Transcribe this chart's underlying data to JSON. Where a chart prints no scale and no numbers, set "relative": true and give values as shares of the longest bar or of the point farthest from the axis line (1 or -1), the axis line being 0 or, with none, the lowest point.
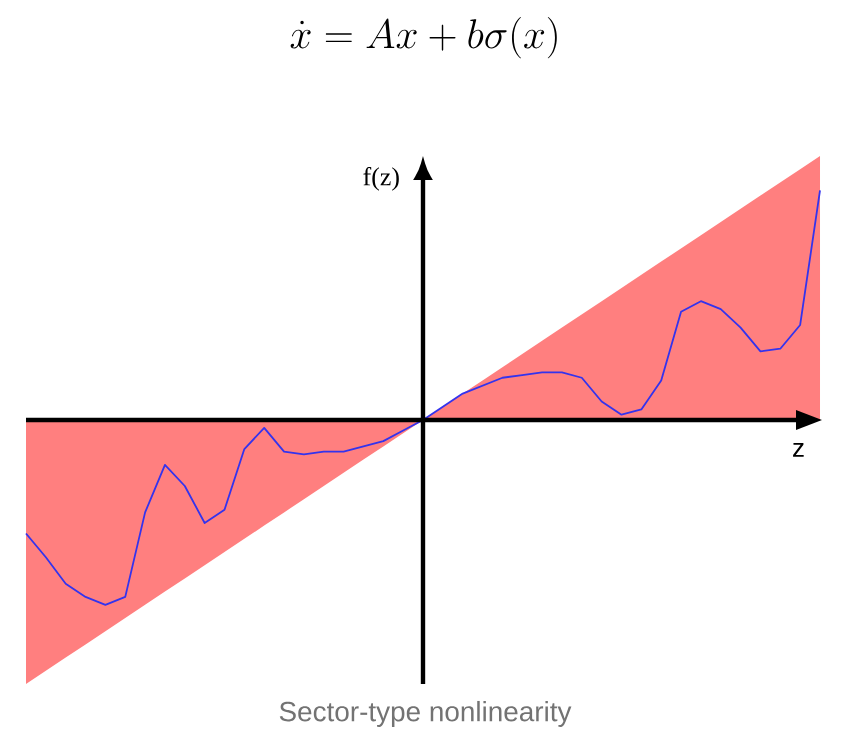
{
  "chart_data": {
    "type": "line",
    "title": "\\dot{x} = Ax + b\\sigma(x)",
    "xlabel": "z",
    "ylabel": "f(z)",
    "relative": true,
    "categories": [
      null,
      null,
      null,
      null,
      null,
      null,
      null,
      null,
      null,
      null,
      null,
      null,
      null,
      null,
      null,
      null,
      null,
      null,
      null,
      null,
      null,
      null,
      null,
      null,
      null,
      null,
      null,
      null,
      null,
      null,
      null,
      null,
      null,
      null,
      null,
      null,
      null,
      null,
      null,
      null,
      null
    ],
    "annotations": [
      "Sector-type nonlinearity"
    ],
    "series": [
      {
        "type": "area",
        "color": "#ff7f7f",
        "values": [
          -1,
          -0.95,
          -0.9,
          -0.85,
          -0.8,
          -0.75,
          -0.7,
          -0.65,
          -0.6,
          -0.55,
          -0.5,
          -0.45,
          -0.4,
          -0.35,
          -0.3,
          -0.25,
          -0.2,
          -0.15,
          -0.1,
          -0.05,
          0,
          0.05,
          0.1,
          0.15,
          0.2,
          0.25,
          0.3,
          0.35,
          0.4,
          0.45,
          0.5,
          0.55,
          0.6,
          0.65,
          0.7,
          0.75,
          0.8,
          0.85,
          0.9,
          0.95,
          1
        ]
      },
      {
        "color": "#3333ee",
        "values": [
          -0.43,
          -0.52,
          -0.62,
          -0.67,
          -0.7,
          -0.67,
          -0.35,
          -0.17,
          -0.25,
          -0.39,
          -0.34,
          -0.11,
          -0.03,
          -0.12,
          -0.13,
          -0.12,
          -0.12,
          -0.1,
          -0.08,
          -0.04,
          0,
          0.05,
          0.1,
          0.13,
          0.16,
          0.17,
          0.18,
          0.18,
          0.16,
          0.07,
          0.02,
          0.04,
          0.15,
          0.41,
          0.45,
          0.42,
          0.35,
          0.26,
          0.27,
          0.36,
          0.87
        ]
      }
    ]
  }
}
